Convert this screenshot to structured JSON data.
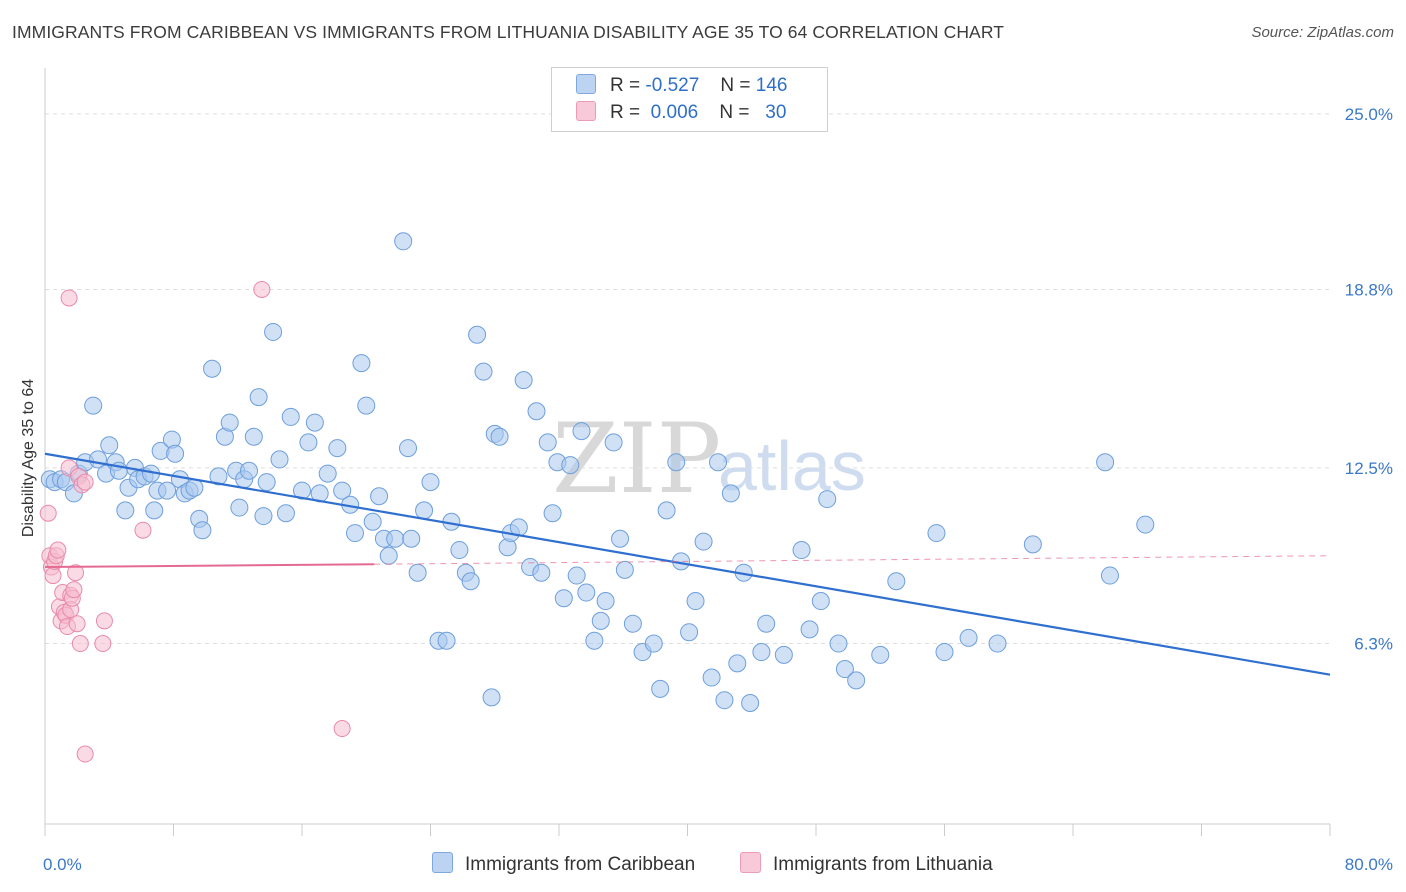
{
  "title": "IMMIGRANTS FROM CARIBBEAN VS IMMIGRANTS FROM LITHUANIA DISABILITY AGE 35 TO 64 CORRELATION CHART",
  "source": "Source: ZipAtlas.com",
  "watermark": {
    "zip": "ZIP",
    "atlas": "atlas"
  },
  "legend": {
    "rows": [
      {
        "r_label": "R =",
        "r_value": "-0.527",
        "n_label": "N =",
        "n_value": "146"
      },
      {
        "r_label": "R =",
        "r_value": "0.006",
        "n_label": "N =",
        "n_value": "30"
      }
    ]
  },
  "bottom_legend": [
    "Immigrants from Caribbean",
    "Immigrants from Lithuania"
  ],
  "colors": {
    "blue_fill": "#a9c8ee",
    "blue_stroke": "#6e9fdc",
    "blue_line": "#2f6fd0",
    "pink_fill": "#f5bdd0",
    "pink_stroke": "#e88aaa",
    "pink_line": "#e56a92",
    "tick_text": "#3a78c8",
    "grid": "#dddddd"
  },
  "chart_data": {
    "type": "scatter",
    "title": "IMMIGRANTS FROM CARIBBEAN VS IMMIGRANTS FROM LITHUANIA DISABILITY AGE 35 TO 64 CORRELATION CHART",
    "ylabel": "Disability Age 35 to 64",
    "xlim": [
      0,
      80
    ],
    "ylim": [
      0,
      26.3
    ],
    "x_tick_labels": [
      "0.0%",
      "80.0%"
    ],
    "y_tick_values": [
      6.3,
      12.5,
      18.8,
      25.0
    ],
    "y_tick_labels": [
      "6.3%",
      "12.5%",
      "18.8%",
      "25.0%"
    ],
    "grid": true,
    "legend_position": "top-center",
    "series": [
      {
        "name": "Immigrants from Caribbean",
        "color": "#a9c8ee",
        "trend": {
          "x": [
            0,
            80
          ],
          "y": [
            13.0,
            5.2
          ]
        },
        "points": [
          [
            0.3,
            12.1
          ],
          [
            0.6,
            12.0
          ],
          [
            1.0,
            12.1
          ],
          [
            1.3,
            12.0
          ],
          [
            1.8,
            11.6
          ],
          [
            2.1,
            12.3
          ],
          [
            2.5,
            12.7
          ],
          [
            3.0,
            14.7
          ],
          [
            3.3,
            12.8
          ],
          [
            3.8,
            12.3
          ],
          [
            4.0,
            13.3
          ],
          [
            4.4,
            12.7
          ],
          [
            4.6,
            12.4
          ],
          [
            5.0,
            11.0
          ],
          [
            5.2,
            11.8
          ],
          [
            5.6,
            12.5
          ],
          [
            5.8,
            12.1
          ],
          [
            6.2,
            12.2
          ],
          [
            6.6,
            12.3
          ],
          [
            6.8,
            11.0
          ],
          [
            7.0,
            11.7
          ],
          [
            7.2,
            13.1
          ],
          [
            7.6,
            11.7
          ],
          [
            7.9,
            13.5
          ],
          [
            8.1,
            13.0
          ],
          [
            8.4,
            12.1
          ],
          [
            8.7,
            11.6
          ],
          [
            9.0,
            11.7
          ],
          [
            9.3,
            11.8
          ],
          [
            9.6,
            10.7
          ],
          [
            9.8,
            10.3
          ],
          [
            10.4,
            16.0
          ],
          [
            10.8,
            12.2
          ],
          [
            11.2,
            13.6
          ],
          [
            11.5,
            14.1
          ],
          [
            11.9,
            12.4
          ],
          [
            12.1,
            11.1
          ],
          [
            12.4,
            12.1
          ],
          [
            12.7,
            12.4
          ],
          [
            13.0,
            13.6
          ],
          [
            13.3,
            15.0
          ],
          [
            13.6,
            10.8
          ],
          [
            13.8,
            12.0
          ],
          [
            14.2,
            17.3
          ],
          [
            14.6,
            12.8
          ],
          [
            15.0,
            10.9
          ],
          [
            15.3,
            14.3
          ],
          [
            16.0,
            11.7
          ],
          [
            16.4,
            13.4
          ],
          [
            16.8,
            14.1
          ],
          [
            17.1,
            11.6
          ],
          [
            17.6,
            12.3
          ],
          [
            18.2,
            13.2
          ],
          [
            18.5,
            11.7
          ],
          [
            19.0,
            11.2
          ],
          [
            19.3,
            10.2
          ],
          [
            19.7,
            16.2
          ],
          [
            20.0,
            14.7
          ],
          [
            20.4,
            10.6
          ],
          [
            20.8,
            11.5
          ],
          [
            21.1,
            10.0
          ],
          [
            21.4,
            9.4
          ],
          [
            21.8,
            10.0
          ],
          [
            22.3,
            20.5
          ],
          [
            22.6,
            13.2
          ],
          [
            22.8,
            10.0
          ],
          [
            23.2,
            8.8
          ],
          [
            23.6,
            11.0
          ],
          [
            24.0,
            12.0
          ],
          [
            24.5,
            6.4
          ],
          [
            25.0,
            6.4
          ],
          [
            25.3,
            10.6
          ],
          [
            25.8,
            9.6
          ],
          [
            26.2,
            8.8
          ],
          [
            26.5,
            8.5
          ],
          [
            26.9,
            17.2
          ],
          [
            27.3,
            15.9
          ],
          [
            27.8,
            4.4
          ],
          [
            28.0,
            13.7
          ],
          [
            28.3,
            13.6
          ],
          [
            28.8,
            9.7
          ],
          [
            29.0,
            10.2
          ],
          [
            29.5,
            10.4
          ],
          [
            29.8,
            15.6
          ],
          [
            30.2,
            9.0
          ],
          [
            30.6,
            14.5
          ],
          [
            30.9,
            8.8
          ],
          [
            31.3,
            13.4
          ],
          [
            31.6,
            10.9
          ],
          [
            31.9,
            12.7
          ],
          [
            32.3,
            7.9
          ],
          [
            32.7,
            12.6
          ],
          [
            33.1,
            8.7
          ],
          [
            33.4,
            13.8
          ],
          [
            33.7,
            8.1
          ],
          [
            34.2,
            6.4
          ],
          [
            34.6,
            7.1
          ],
          [
            34.9,
            7.8
          ],
          [
            35.4,
            13.4
          ],
          [
            35.8,
            10.0
          ],
          [
            36.1,
            8.9
          ],
          [
            36.6,
            7.0
          ],
          [
            37.2,
            6.0
          ],
          [
            37.9,
            6.3
          ],
          [
            38.3,
            4.7
          ],
          [
            38.7,
            11.0
          ],
          [
            39.3,
            12.7
          ],
          [
            39.6,
            9.2
          ],
          [
            40.1,
            6.7
          ],
          [
            40.5,
            7.8
          ],
          [
            41.0,
            9.9
          ],
          [
            41.5,
            5.1
          ],
          [
            41.9,
            12.7
          ],
          [
            42.3,
            4.3
          ],
          [
            42.7,
            11.6
          ],
          [
            43.1,
            5.6
          ],
          [
            43.5,
            8.8
          ],
          [
            43.9,
            4.2
          ],
          [
            44.6,
            6.0
          ],
          [
            44.9,
            7.0
          ],
          [
            46.0,
            5.9
          ],
          [
            47.1,
            9.6
          ],
          [
            47.6,
            6.8
          ],
          [
            48.3,
            7.8
          ],
          [
            48.7,
            11.4
          ],
          [
            49.4,
            6.3
          ],
          [
            49.8,
            5.4
          ],
          [
            50.5,
            5.0
          ],
          [
            52.0,
            5.9
          ],
          [
            53.0,
            8.5
          ],
          [
            55.5,
            10.2
          ],
          [
            56.0,
            6.0
          ],
          [
            57.5,
            6.5
          ],
          [
            59.3,
            6.3
          ],
          [
            61.5,
            9.8
          ],
          [
            66.0,
            12.7
          ],
          [
            66.3,
            8.7
          ],
          [
            68.5,
            10.5
          ]
        ]
      },
      {
        "name": "Immigrants from Lithuania",
        "color": "#f5bdd0",
        "trend": {
          "x": [
            0,
            20.5
          ],
          "y": [
            9.0,
            9.1
          ]
        },
        "trend_extension": {
          "x": [
            20.5,
            80
          ],
          "y": [
            9.1,
            9.4
          ]
        },
        "points": [
          [
            0.2,
            10.9
          ],
          [
            0.3,
            9.4
          ],
          [
            0.4,
            9.0
          ],
          [
            0.5,
            8.7
          ],
          [
            0.6,
            9.2
          ],
          [
            0.7,
            9.4
          ],
          [
            0.8,
            9.6
          ],
          [
            0.9,
            7.6
          ],
          [
            1.0,
            7.1
          ],
          [
            1.1,
            8.1
          ],
          [
            1.2,
            7.4
          ],
          [
            1.3,
            7.3
          ],
          [
            1.4,
            6.9
          ],
          [
            1.5,
            18.5
          ],
          [
            1.6,
            8.0
          ],
          [
            1.6,
            7.5
          ],
          [
            1.7,
            7.9
          ],
          [
            1.8,
            8.2
          ],
          [
            1.9,
            8.8
          ],
          [
            1.5,
            12.5
          ],
          [
            2.0,
            7.0
          ],
          [
            2.2,
            6.3
          ],
          [
            2.1,
            12.2
          ],
          [
            2.3,
            11.9
          ],
          [
            2.5,
            12.0
          ],
          [
            2.5,
            2.4
          ],
          [
            3.6,
            6.3
          ],
          [
            3.7,
            7.1
          ],
          [
            6.1,
            10.3
          ],
          [
            13.5,
            18.8
          ],
          [
            18.5,
            3.3
          ]
        ]
      }
    ]
  }
}
